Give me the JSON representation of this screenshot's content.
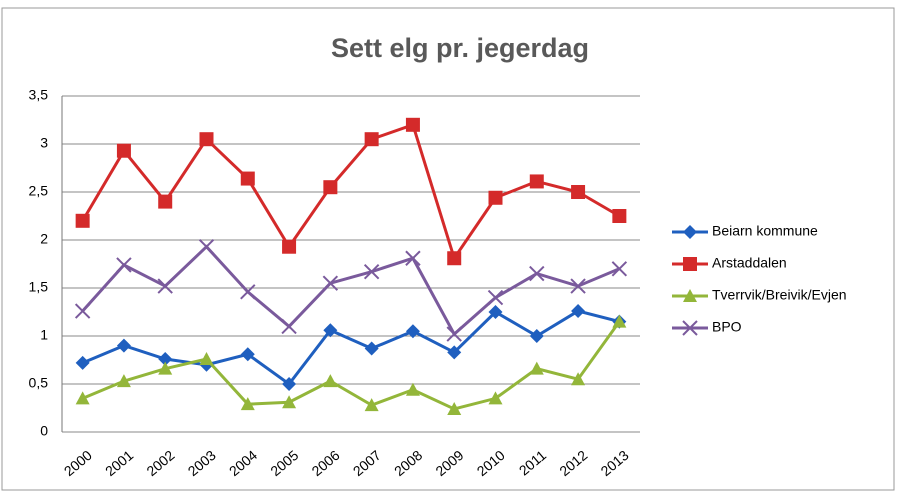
{
  "chart_data": {
    "type": "line",
    "title": "Sett elg pr. jegerdag",
    "categories": [
      "2000",
      "2001",
      "2002",
      "2003",
      "2004",
      "2005",
      "2006",
      "2007",
      "2008",
      "2009",
      "2010",
      "2011",
      "2012",
      "2013"
    ],
    "series": [
      {
        "name": "Beiarn kommune",
        "color": "#1f5fbf",
        "marker": "diamond",
        "values": [
          0.72,
          0.9,
          0.76,
          0.7,
          0.81,
          0.5,
          1.06,
          0.87,
          1.05,
          0.83,
          1.25,
          1.0,
          1.26,
          1.15
        ]
      },
      {
        "name": "Arstaddalen",
        "color": "#d42a2a",
        "marker": "square",
        "values": [
          2.2,
          2.93,
          2.4,
          3.05,
          2.64,
          1.93,
          2.55,
          3.05,
          3.2,
          1.81,
          2.44,
          2.61,
          2.5,
          2.25
        ]
      },
      {
        "name": "Tverrvik/Breivik/Evjen",
        "color": "#93b63a",
        "marker": "triangle",
        "values": [
          0.35,
          0.53,
          0.66,
          0.76,
          0.29,
          0.31,
          0.53,
          0.28,
          0.44,
          0.24,
          0.35,
          0.66,
          0.55,
          1.15
        ]
      },
      {
        "name": "BPO",
        "color": "#7a5a9c",
        "marker": "x",
        "values": [
          1.26,
          1.74,
          1.52,
          1.93,
          1.46,
          1.1,
          1.55,
          1.67,
          1.81,
          1.02,
          1.4,
          1.65,
          1.52,
          1.7
        ]
      }
    ],
    "ylim": [
      0,
      3.5
    ],
    "yticks": [
      0,
      {
        "value": 0.5,
        "label": "0,5"
      },
      1,
      {
        "value": 1.5,
        "label": "1,5"
      },
      2,
      {
        "value": 2.5,
        "label": "2,5"
      },
      3,
      {
        "value": 3.5,
        "label": "3,5"
      }
    ],
    "grid": true,
    "legend": "right"
  }
}
